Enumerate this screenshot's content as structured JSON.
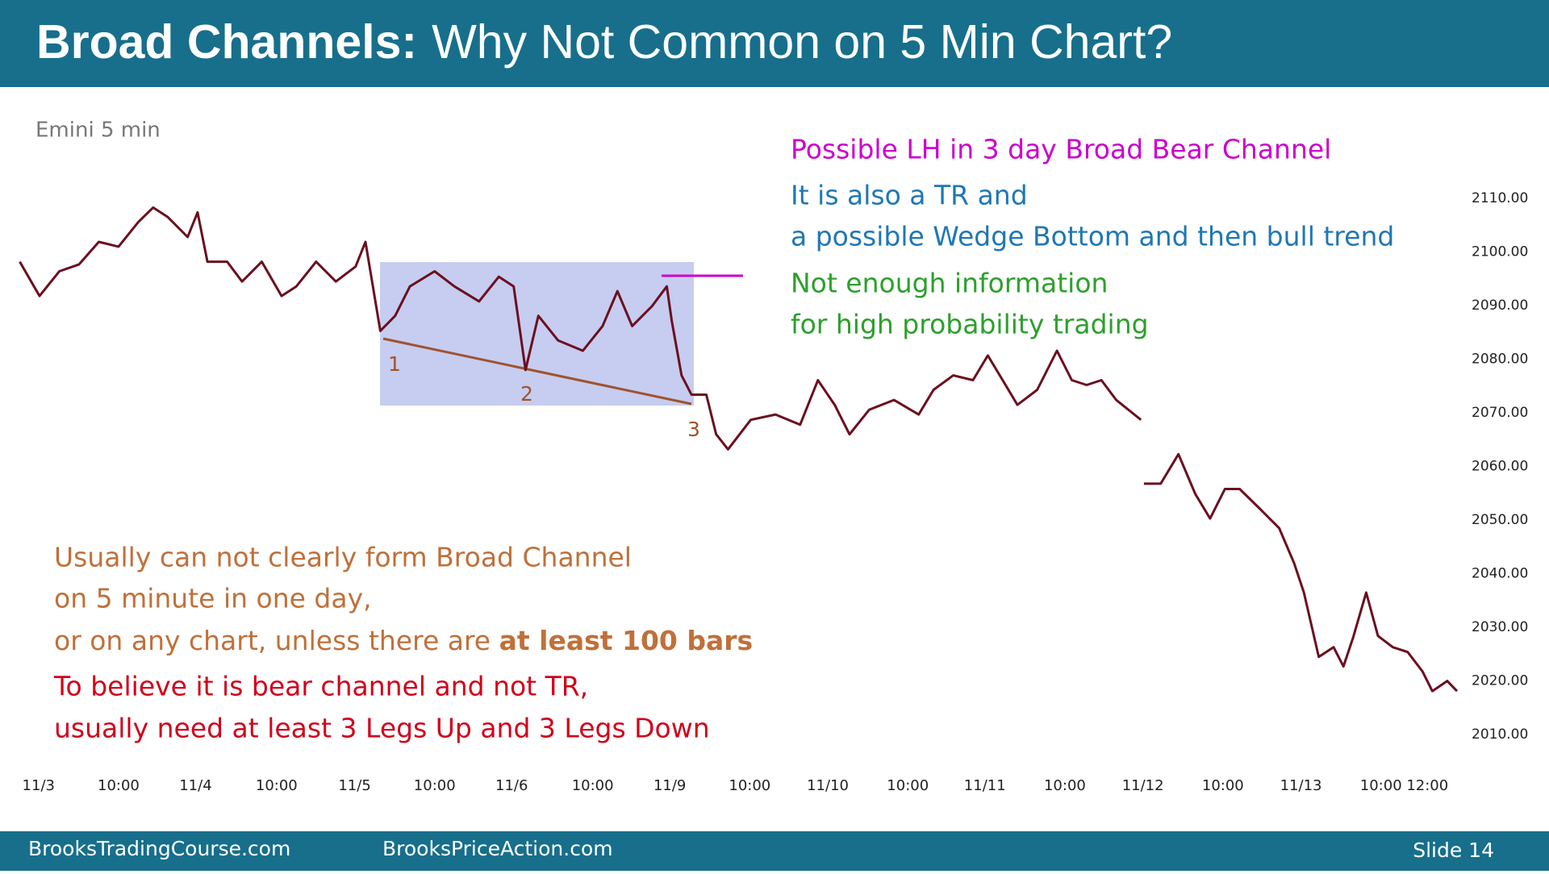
{
  "header": {
    "title_bold": "Broad Channels:",
    "title_rest": "Why Not Common on 5 Min Chart?"
  },
  "footer": {
    "left": "BrooksTradingCourse.com",
    "middle": "BrooksPriceAction.com",
    "right": "Slide  14"
  },
  "chart_data": {
    "type": "line",
    "title": "Emini 5 min",
    "x": [
      0,
      20,
      40,
      60,
      80,
      100,
      120,
      135,
      150,
      170,
      180,
      190,
      210,
      225,
      245,
      265,
      280,
      300,
      320,
      340,
      350,
      365,
      380,
      395,
      420,
      440,
      465,
      485,
      500,
      512,
      525,
      545,
      570,
      590,
      605,
      620,
      640,
      655,
      660,
      670,
      680,
      695,
      705,
      717,
      740,
      765,
      790,
      808,
      825,
      840,
      860,
      885,
      910,
      925,
      945,
      965,
      980,
      995,
      1010,
      1030,
      1050,
      1065,
      1080,
      1095,
      1110,
      1135,
      null,
      1138,
      1155,
      1173,
      1190,
      1205,
      1220,
      1235,
      1255,
      1275,
      1290,
      1300,
      1315,
      1330,
      1340,
      1350,
      1363,
      1375,
      1390,
      1405,
      1420,
      1430,
      1445,
      1455
    ],
    "series": [
      {
        "name": "Emini",
        "color": "#6b0f1f",
        "values": [
          2098.2,
          2091.8,
          2096.4,
          2097.7,
          2101.9,
          2101,
          2105.6,
          2108.3,
          2106.5,
          2102.8,
          2107.4,
          2098.2,
          2098.2,
          2094.5,
          2098.2,
          2091.8,
          2093.6,
          2098.2,
          2094.5,
          2097.3,
          2101.9,
          2085.3,
          2088.1,
          2093.6,
          2096.4,
          2093.6,
          2090.8,
          2095.4,
          2093.6,
          2078,
          2088.1,
          2083.5,
          2081.6,
          2086.2,
          2092.7,
          2086.2,
          2089.9,
          2093.6,
          2087.2,
          2077,
          2073.4,
          2073.4,
          2066,
          2063.2,
          2068.7,
          2069.7,
          2067.8,
          2076.1,
          2071.5,
          2066,
          2070.6,
          2072.4,
          2069.7,
          2074.3,
          2077,
          2076.1,
          2080.7,
          2076.1,
          2071.5,
          2074.3,
          2081.6,
          2076.1,
          2075.2,
          2076.1,
          2072.4,
          2068.7,
          null,
          2056.8,
          2056.8,
          2062.3,
          2054.9,
          2050.3,
          2055.8,
          2055.8,
          2052.2,
          2048.5,
          2042,
          2036.5,
          2024.5,
          2026.3,
          2022.7,
          2028.2,
          2036.5,
          2028.4,
          2026.3,
          2025.4,
          2021.8,
          2018.1,
          2020,
          2018.1
        ]
      }
    ],
    "xlim": [
      0,
      1455
    ],
    "ylim": [
      2004,
      2124
    ],
    "xticks": [
      {
        "value": 19,
        "label": "11/3"
      },
      {
        "value": 100,
        "label": "10:00"
      },
      {
        "value": 178,
        "label": "11/4"
      },
      {
        "value": 260,
        "label": "10:00"
      },
      {
        "value": 339,
        "label": "11/5"
      },
      {
        "value": 420,
        "label": "10:00"
      },
      {
        "value": 498,
        "label": "11/6"
      },
      {
        "value": 580,
        "label": "10:00"
      },
      {
        "value": 658,
        "label": "11/9"
      },
      {
        "value": 739,
        "label": "10:00"
      },
      {
        "value": 818,
        "label": "11/10"
      },
      {
        "value": 899,
        "label": "10:00"
      },
      {
        "value": 977,
        "label": "11/11"
      },
      {
        "value": 1058,
        "label": "10:00"
      },
      {
        "value": 1137,
        "label": "11/12"
      },
      {
        "value": 1218,
        "label": "10:00"
      },
      {
        "value": 1297,
        "label": "11/13"
      },
      {
        "value": 1378,
        "label": "10:00"
      },
      {
        "value": 1425,
        "label": "12:00"
      }
    ],
    "yticks": [
      {
        "value": 2110,
        "label": "2110.00"
      },
      {
        "value": 2100,
        "label": "2100.00"
      },
      {
        "value": 2090,
        "label": "2090.00"
      },
      {
        "value": 2080,
        "label": "2080.00"
      },
      {
        "value": 2070,
        "label": "2070.00"
      },
      {
        "value": 2060,
        "label": "2060.00"
      },
      {
        "value": 2050,
        "label": "2050.00"
      },
      {
        "value": 2040,
        "label": "2040.00"
      },
      {
        "value": 2030,
        "label": "2030.00"
      },
      {
        "value": 2020,
        "label": "2020.00"
      },
      {
        "value": 2010,
        "label": "2010.00"
      }
    ],
    "point_labels": [
      "1",
      "2",
      "3"
    ],
    "annotations": {
      "magenta": "Possible LH in 3 day Broad Bear Channel",
      "blue": [
        "It is also a TR and",
        "a possible Wedge Bottom and then bull trend"
      ],
      "green": [
        "Not enough information",
        "for high probability trading"
      ],
      "orange": [
        "Usually can not clearly form Broad Channel",
        "on 5 minute in one day,",
        "or on any chart, unless there are ",
        "at least 100 bars"
      ],
      "red": [
        "To believe it is bear channel and not TR,",
        "usually need at least 3 Legs Up and 3 Legs Down"
      ]
    }
  }
}
